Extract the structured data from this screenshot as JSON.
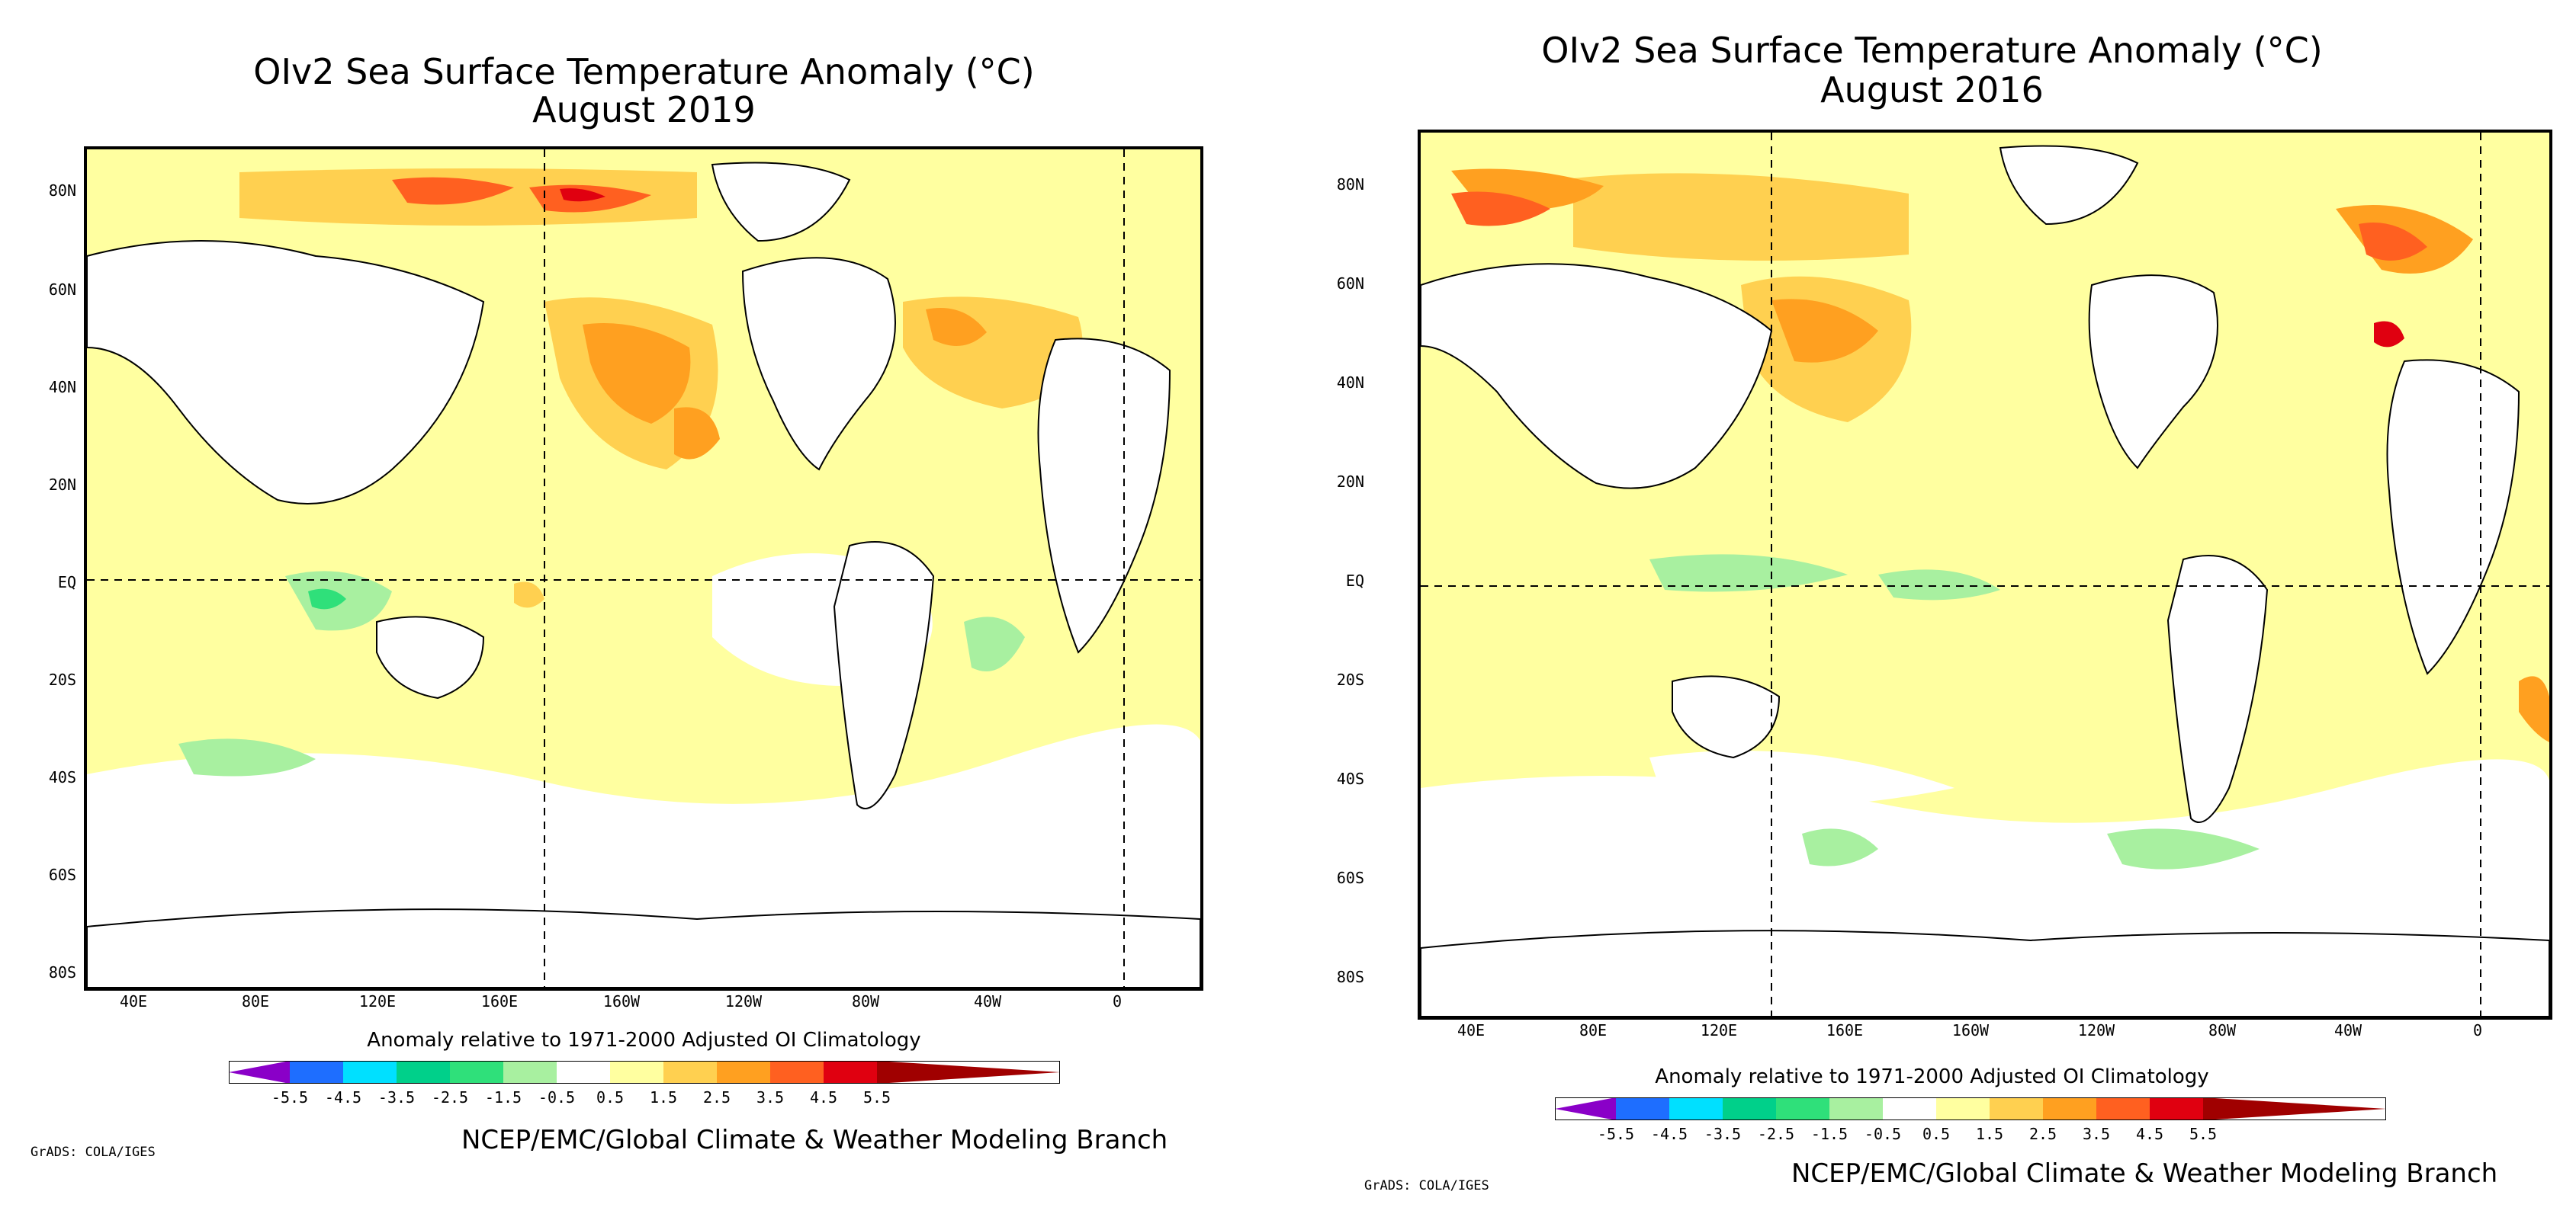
{
  "colors": {
    "neg55": "#8a00c8",
    "neg45": "#1e6eff",
    "neg35": "#00e0ff",
    "neg25": "#00d08a",
    "neg15": "#2fe07a",
    "neg05": "#a8f0a0",
    "pos05": "#ffffff",
    "pos15": "#ffffa0",
    "pos25": "#ffd050",
    "pos35": "#ffa020",
    "pos45": "#ff6020",
    "pos55": "#e00010",
    "high": "#a00000"
  },
  "panels": [
    {
      "title_line1": "OIv2 Sea Surface Temperature Anomaly (°C)",
      "title_line2": "August 2019",
      "lat_labels": [
        "80N",
        "60N",
        "40N",
        "20N",
        "EQ",
        "20S",
        "40S",
        "60S",
        "80S"
      ],
      "lon_labels": [
        "40E",
        "80E",
        "120E",
        "160E",
        "160W",
        "120W",
        "80W",
        "40W",
        "0"
      ],
      "colorbar_title": "Anomaly relative to 1971-2000 Adjusted OI Climatology",
      "colorbar_ticks": [
        "-5.5",
        "-4.5",
        "-3.5",
        "-2.5",
        "-1.5",
        "-0.5",
        "0.5",
        "1.5",
        "2.5",
        "3.5",
        "4.5",
        "5.5"
      ],
      "credit": "NCEP/EMC/Global Climate & Weather Modeling Branch",
      "grads": "GrADS: COLA/IGES"
    },
    {
      "title_line1": "OIv2 Sea Surface Temperature Anomaly (°C)",
      "title_line2": "August 2016",
      "lat_labels": [
        "80N",
        "60N",
        "40N",
        "20N",
        "EQ",
        "20S",
        "40S",
        "60S",
        "80S"
      ],
      "lon_labels": [
        "40E",
        "80E",
        "120E",
        "160E",
        "160W",
        "120W",
        "80W",
        "40W",
        "0"
      ],
      "colorbar_title": "Anomaly relative to 1971-2000 Adjusted OI Climatology",
      "colorbar_ticks": [
        "-5.5",
        "-4.5",
        "-3.5",
        "-2.5",
        "-1.5",
        "-0.5",
        "0.5",
        "1.5",
        "2.5",
        "3.5",
        "4.5",
        "5.5"
      ],
      "credit": "NCEP/EMC/Global Climate & Weather Modeling Branch",
      "grads": "GrADS: COLA/IGES"
    }
  ]
}
